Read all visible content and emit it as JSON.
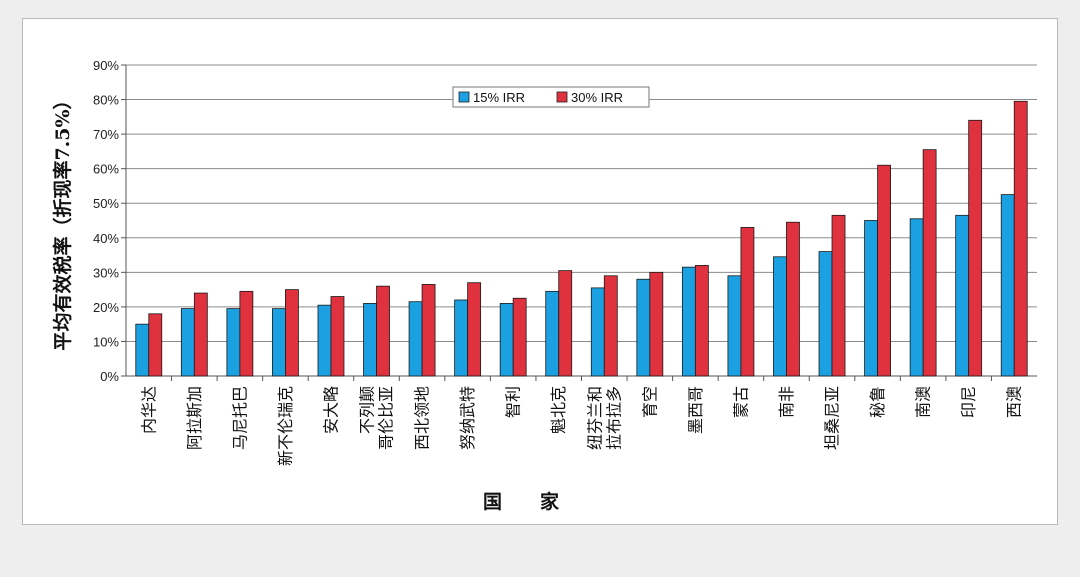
{
  "chart_data": {
    "type": "bar",
    "ylabel": "平均有效税率（折现率7.5%）",
    "xlabel": "国　　家",
    "ylim": [
      0,
      90
    ],
    "yticks": [
      "0%",
      "10%",
      "20%",
      "30%",
      "40%",
      "50%",
      "60%",
      "70%",
      "80%",
      "90%"
    ],
    "grid": true,
    "legend_position": "top-center",
    "categories": [
      "内华达",
      "阿拉斯加",
      "马尼托巴",
      "新不伦瑞克",
      "安大略",
      "不列颠\n哥伦比亚",
      "西北领地",
      "努纳武特",
      "智利",
      "魁北克",
      "纽芬兰和\n拉布拉多",
      "育空",
      "墨西哥",
      "蒙古",
      "南非",
      "坦桑尼亚",
      "秘鲁",
      "南澳",
      "印尼",
      "西澳"
    ],
    "series": [
      {
        "name": "15% IRR",
        "color": "#1ba0e2",
        "values": [
          15,
          19.5,
          19.5,
          19.5,
          20.5,
          21,
          21.5,
          22,
          21,
          24.5,
          25.5,
          28,
          31.5,
          29,
          34.5,
          36,
          45,
          45.5,
          46.5,
          52.5
        ]
      },
      {
        "name": "30% IRR",
        "color": "#e0313e",
        "values": [
          18,
          24,
          24.5,
          25,
          23,
          26,
          26.5,
          27,
          22.5,
          30.5,
          29,
          30,
          32,
          43,
          44.5,
          46.5,
          61,
          65.5,
          74,
          79.5
        ]
      }
    ]
  }
}
